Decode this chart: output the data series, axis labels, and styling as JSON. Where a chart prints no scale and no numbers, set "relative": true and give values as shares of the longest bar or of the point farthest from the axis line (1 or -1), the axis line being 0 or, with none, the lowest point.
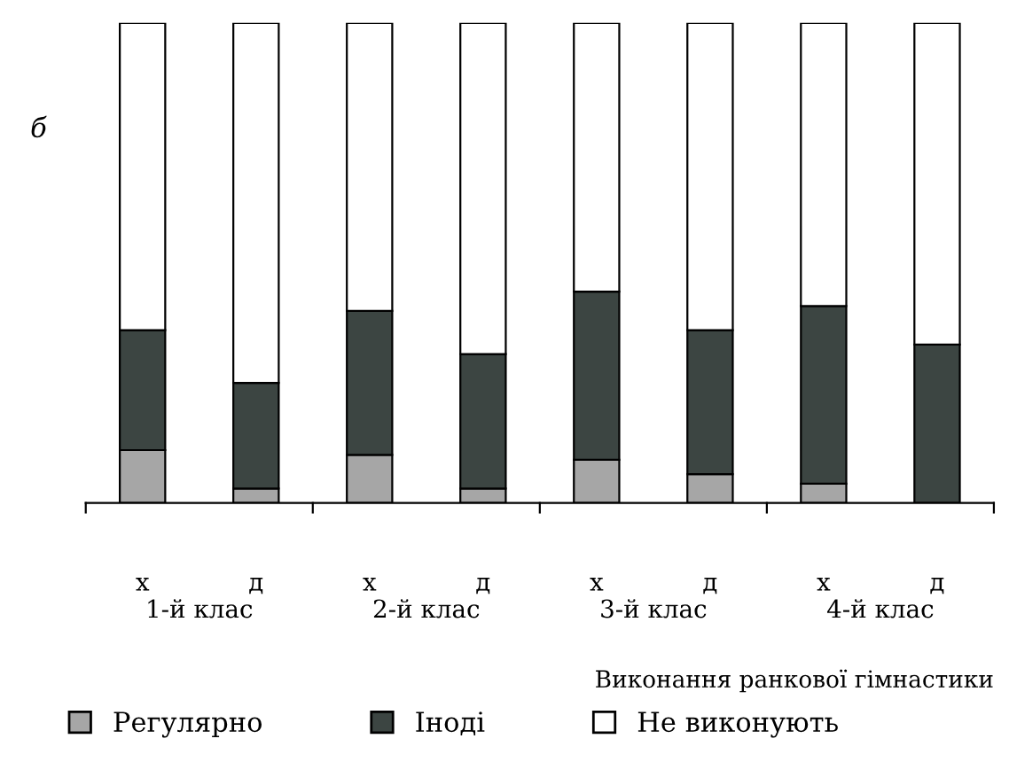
{
  "chart_data": {
    "type": "bar",
    "stacked": true,
    "relative": true,
    "categories": [
      "х",
      "д",
      "х",
      "д",
      "х",
      "д",
      "х",
      "д"
    ],
    "series": [
      {
        "name": "Регулярно",
        "color": "#a6a6a6",
        "values": [
          0.11,
          0.03,
          0.1,
          0.03,
          0.09,
          0.06,
          0.04,
          0.0
        ]
      },
      {
        "name": "Іноді",
        "color": "#3c4542",
        "values": [
          0.25,
          0.22,
          0.3,
          0.28,
          0.35,
          0.3,
          0.37,
          0.33
        ]
      },
      {
        "name": "Не виконують",
        "color": "#ffffff",
        "values": [
          0.64,
          0.75,
          0.6,
          0.69,
          0.56,
          0.64,
          0.59,
          0.67
        ]
      }
    ],
    "xlabel": "Виконання ранкової гімнастики",
    "annotations": [
      "б",
      "1-й клас",
      "2-й клас",
      "3-й клас",
      "4-й клас"
    ],
    "legend": "bottom",
    "grid": false
  }
}
